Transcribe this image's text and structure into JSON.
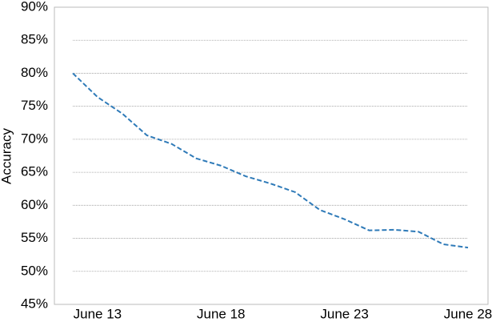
{
  "chart_data": {
    "type": "line",
    "y_label": "Accuracy",
    "categories": [
      null,
      "June 13",
      null,
      null,
      null,
      null,
      "June 18",
      null,
      null,
      null,
      null,
      "June 23",
      null,
      null,
      null,
      null,
      "June 28"
    ],
    "values": [
      80.0,
      76.4,
      73.9,
      70.6,
      69.3,
      67.1,
      66.0,
      64.4,
      63.3,
      62.0,
      59.3,
      57.9,
      56.2,
      56.3,
      56.0,
      54.1,
      53.6
    ],
    "color": "#2e7ab8",
    "dashed": true,
    "ylim": [
      45,
      90
    ],
    "yticks": [
      {
        "value": 45,
        "label": "45%"
      },
      {
        "value": 50,
        "label": "50%"
      },
      {
        "value": 55,
        "label": "55%"
      },
      {
        "value": 60,
        "label": "60%"
      },
      {
        "value": 65,
        "label": "65%"
      },
      {
        "value": 70,
        "label": "70%"
      },
      {
        "value": 75,
        "label": "75%"
      },
      {
        "value": 80,
        "label": "80%"
      },
      {
        "value": 85,
        "label": "85%"
      },
      {
        "value": 90,
        "label": "90%"
      }
    ],
    "grid": true
  }
}
